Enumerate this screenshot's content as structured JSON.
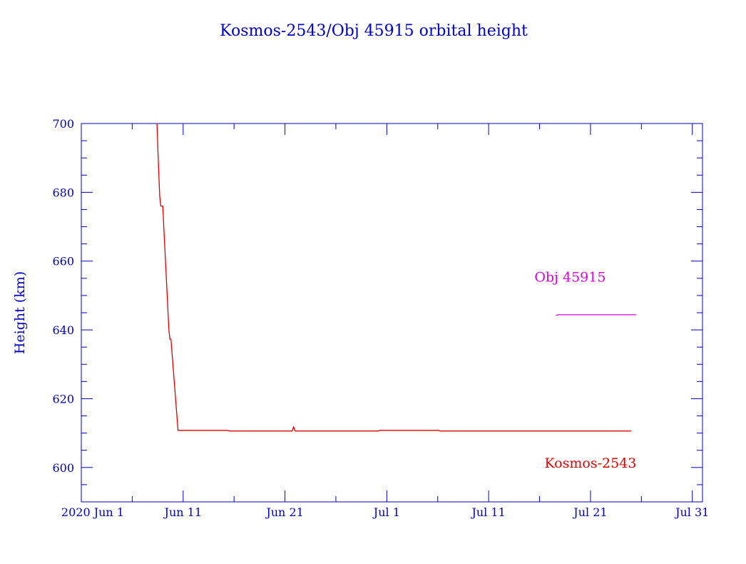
{
  "chart_data": {
    "type": "line",
    "title": "Kosmos-2543/Obj 45915 orbital height",
    "xlabel": "",
    "ylabel": "Height (km)",
    "x_units": "days since 2020 Jun 1",
    "xlim": [
      0,
      61
    ],
    "ylim": [
      590,
      700
    ],
    "grid": false,
    "x_ticks": [
      {
        "value": 0,
        "label": "2020 Jun  1"
      },
      {
        "value": 10,
        "label": "Jun 11"
      },
      {
        "value": 20,
        "label": "Jun 21"
      },
      {
        "value": 30,
        "label": "Jul  1"
      },
      {
        "value": 40,
        "label": "Jul 11"
      },
      {
        "value": 50,
        "label": "Jul 21"
      },
      {
        "value": 60,
        "label": "Jul 31"
      }
    ],
    "y_ticks": [
      {
        "value": 600,
        "label": "600"
      },
      {
        "value": 620,
        "label": "620"
      },
      {
        "value": 640,
        "label": "640"
      },
      {
        "value": 660,
        "label": "660"
      },
      {
        "value": 680,
        "label": "680"
      },
      {
        "value": 700,
        "label": "700"
      }
    ],
    "series": [
      {
        "name": "Kosmos-2543",
        "color": "#e00000",
        "label_pos": [
          50,
          600
        ],
        "x": [
          7.43,
          7.55,
          7.7,
          7.8,
          8.0,
          8.6,
          8.7,
          8.8,
          9.5,
          14.4,
          14.5,
          20.7,
          20.85,
          21.0,
          29.2,
          29.3,
          35.1,
          35.2,
          54.0
        ],
        "y": [
          700,
          690,
          679,
          676,
          676,
          640,
          637.3,
          637.3,
          610.8,
          610.8,
          610.6,
          610.6,
          611.8,
          610.6,
          610.6,
          610.8,
          610.8,
          610.6,
          610.6
        ]
      },
      {
        "name": "Obj 45915",
        "color": "#e000e0",
        "label_pos": [
          48,
          654
        ],
        "x": [
          46.6,
          46.8,
          54.5
        ],
        "y": [
          644.2,
          644.4,
          644.4
        ]
      }
    ],
    "axis_color": "#0000cc"
  }
}
